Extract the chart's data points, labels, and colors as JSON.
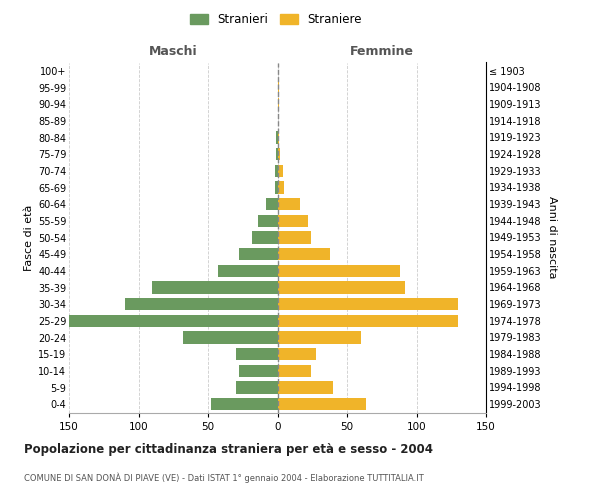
{
  "age_groups": [
    "0-4",
    "5-9",
    "10-14",
    "15-19",
    "20-24",
    "25-29",
    "30-34",
    "35-39",
    "40-44",
    "45-49",
    "50-54",
    "55-59",
    "60-64",
    "65-69",
    "70-74",
    "75-79",
    "80-84",
    "85-89",
    "90-94",
    "95-99",
    "100+"
  ],
  "birth_years": [
    "1999-2003",
    "1994-1998",
    "1989-1993",
    "1984-1988",
    "1979-1983",
    "1974-1978",
    "1969-1973",
    "1964-1968",
    "1959-1963",
    "1954-1958",
    "1949-1953",
    "1944-1948",
    "1939-1943",
    "1934-1938",
    "1929-1933",
    "1924-1928",
    "1919-1923",
    "1914-1918",
    "1909-1913",
    "1904-1908",
    "≤ 1903"
  ],
  "maschi": [
    48,
    30,
    28,
    30,
    68,
    150,
    110,
    90,
    43,
    28,
    18,
    14,
    8,
    2,
    2,
    1,
    1,
    0,
    0,
    0,
    0
  ],
  "femmine": [
    64,
    40,
    24,
    28,
    60,
    130,
    130,
    92,
    88,
    38,
    24,
    22,
    16,
    5,
    4,
    2,
    1,
    0,
    1,
    1,
    0
  ],
  "color_maschi": "#6a9a5f",
  "color_femmine": "#f0b429",
  "title": "Popolazione per cittadinanza straniera per età e sesso - 2004",
  "subtitle": "COMUNE DI SAN DONÀ DI PIAVE (VE) - Dati ISTAT 1° gennaio 2004 - Elaborazione TUTTITALIA.IT",
  "ylabel_left": "Fasce di età",
  "ylabel_right": "Anni di nascita",
  "xlabel_maschi": "Maschi",
  "xlabel_femmine": "Femmine",
  "legend_maschi": "Stranieri",
  "legend_femmine": "Straniere",
  "xlim": 150,
  "background_color": "#ffffff",
  "grid_color": "#cccccc"
}
